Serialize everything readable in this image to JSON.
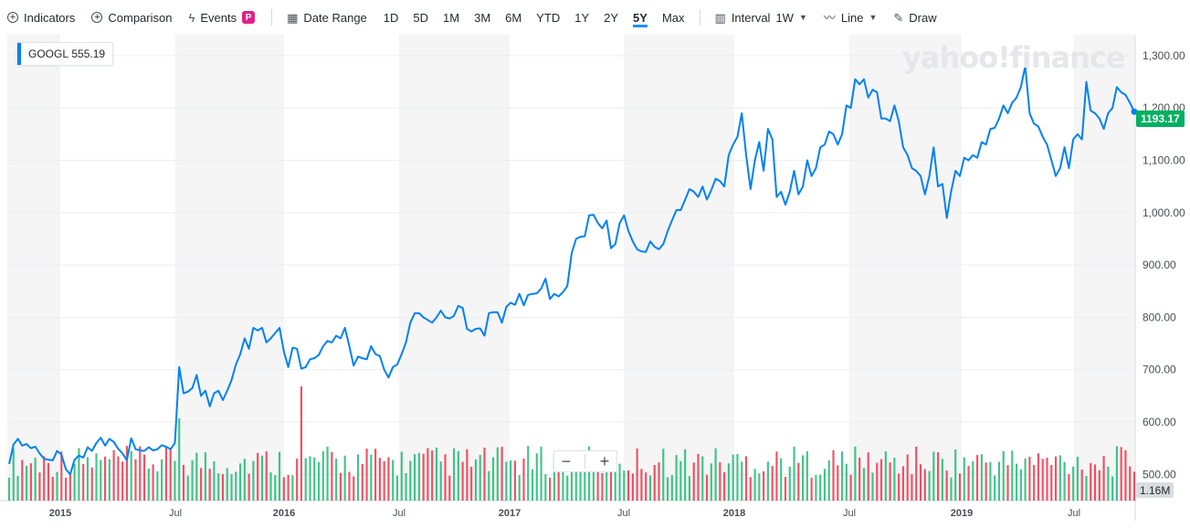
{
  "toolbar": {
    "indicators": "Indicators",
    "comparison": "Comparison",
    "events": "Events",
    "events_badge": "P",
    "date_range": "Date Range",
    "ranges": [
      "1D",
      "5D",
      "1M",
      "3M",
      "6M",
      "YTD",
      "1Y",
      "2Y",
      "5Y",
      "Max"
    ],
    "active_range": "5Y",
    "interval_label": "Interval",
    "interval_value": "1W",
    "line_label": "Line",
    "draw_label": "Draw"
  },
  "legend": {
    "ticker": "GOOGL",
    "value": "555.19"
  },
  "watermark": "yahoo!finance",
  "current_price": "1193.17",
  "volume_label": "1.16M",
  "zoom": {
    "minus": "−",
    "plus": "+"
  },
  "colors": {
    "line": "#0081f2",
    "up": "#00b061",
    "down": "#f0162f",
    "band": "#f5f5f5"
  },
  "chart_data": {
    "type": "line",
    "ylim": [
      450,
      1340
    ],
    "y_ticks": [
      "1,300.00",
      "1,200.00",
      "1,100.00",
      "1,000.00",
      "900.00",
      "800.00",
      "700.00",
      "600.00",
      "500.00"
    ],
    "y_tick_values": [
      1300,
      1200,
      1100,
      1000,
      900,
      800,
      700,
      600,
      500
    ],
    "x_ticks": [
      "2015",
      "Jul",
      "2016",
      "Jul",
      "2017",
      "Jul",
      "2018",
      "Jul",
      "2019",
      "Jul"
    ],
    "series": [
      {
        "values": [
          520,
          557,
          568,
          555,
          558,
          550,
          553,
          540,
          530,
          528,
          527,
          545,
          538,
          510,
          500,
          528,
          536,
          532,
          552,
          545,
          560,
          570,
          555,
          568,
          562,
          549,
          540,
          527,
          569,
          548,
          546,
          545,
          552,
          546,
          548,
          556,
          553,
          548,
          560,
          705,
          655,
          658,
          665,
          690,
          650,
          660,
          630,
          655,
          660,
          642,
          660,
          680,
          710,
          730,
          760,
          740,
          780,
          775,
          780,
          752,
          760,
          770,
          780,
          735,
          705,
          742,
          740,
          702,
          705,
          720,
          722,
          728,
          745,
          755,
          752,
          765,
          760,
          780,
          745,
          708,
          725,
          722,
          720,
          745,
          730,
          726,
          700,
          685,
          705,
          710,
          730,
          752,
          790,
          808,
          808,
          800,
          795,
          790,
          800,
          813,
          800,
          798,
          803,
          822,
          818,
          778,
          773,
          778,
          779,
          765,
          808,
          810,
          810,
          790,
          820,
          828,
          824,
          845,
          823,
          843,
          845,
          846,
          855,
          874,
          835,
          845,
          840,
          848,
          860,
          923,
          950,
          954,
          955,
          995,
          996,
          980,
          970,
          985,
          932,
          940,
          980,
          995,
          965,
          945,
          930,
          926,
          925,
          945,
          935,
          930,
          940,
          965,
          985,
          1005,
          1005,
          1025,
          1045,
          1040,
          1030,
          1050,
          1025,
          1043,
          1065,
          1060,
          1050,
          1110,
          1130,
          1145,
          1190,
          1110,
          1045,
          1100,
          1135,
          1080,
          1160,
          1140,
          1030,
          1040,
          1015,
          1040,
          1080,
          1035,
          1050,
          1100,
          1070,
          1085,
          1125,
          1130,
          1155,
          1150,
          1130,
          1150,
          1205,
          1200,
          1255,
          1245,
          1255,
          1220,
          1235,
          1230,
          1180,
          1180,
          1175,
          1205,
          1175,
          1125,
          1110,
          1085,
          1080,
          1070,
          1035,
          1070,
          1125,
          1050,
          1055,
          990,
          1040,
          1080,
          1070,
          1105,
          1100,
          1110,
          1105,
          1135,
          1130,
          1160,
          1162,
          1180,
          1205,
          1190,
          1210,
          1220,
          1240,
          1280,
          1190,
          1170,
          1165,
          1145,
          1130,
          1100,
          1070,
          1085,
          1125,
          1085,
          1140,
          1150,
          1140,
          1250,
          1195,
          1190,
          1180,
          1160,
          1190,
          1200,
          1240,
          1230,
          1225,
          1210,
          1193
        ]
      }
    ]
  }
}
